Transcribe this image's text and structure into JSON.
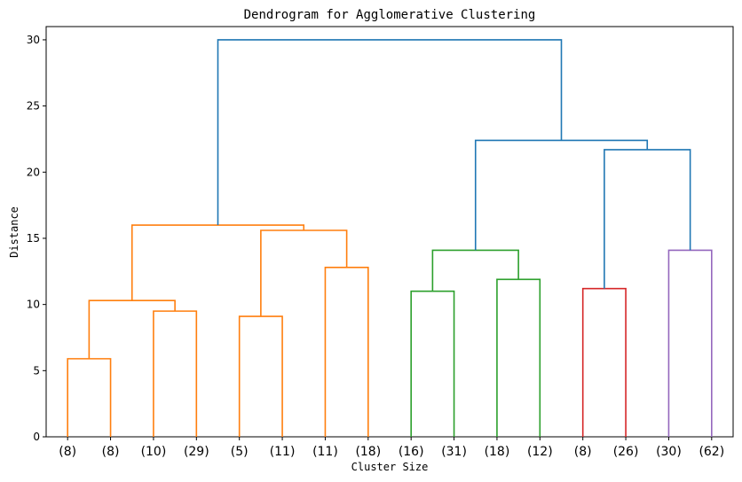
{
  "chart_data": {
    "type": "dendrogram",
    "title": "Dendrogram for Agglomerative Clustering",
    "xlabel": "Cluster Size",
    "ylabel": "Distance",
    "ylim": [
      0,
      31
    ],
    "yticks": [
      0,
      5,
      10,
      15,
      20,
      25,
      30
    ],
    "leaves": [
      "(8)",
      "(8)",
      "(10)",
      "(29)",
      "(5)",
      "(11)",
      "(11)",
      "(18)",
      "(16)",
      "(31)",
      "(18)",
      "(12)",
      "(8)",
      "(26)",
      "(30)",
      "(62)"
    ],
    "colors": {
      "orange": "#ff7f0e",
      "green": "#2ca02c",
      "red": "#d62728",
      "purple": "#9467bd",
      "blue": "#1f77b4"
    },
    "merges": [
      {
        "left": "leaf:0",
        "right": "leaf:1",
        "height": 5.9,
        "color": "orange"
      },
      {
        "left": "leaf:2",
        "right": "leaf:3",
        "height": 9.5,
        "color": "orange"
      },
      {
        "left": "merge:0",
        "right": "merge:1",
        "height": 10.3,
        "color": "orange"
      },
      {
        "left": "leaf:4",
        "right": "leaf:5",
        "height": 9.1,
        "color": "orange"
      },
      {
        "left": "leaf:6",
        "right": "leaf:7",
        "height": 12.8,
        "color": "orange"
      },
      {
        "left": "merge:3",
        "right": "merge:4",
        "height": 15.6,
        "color": "orange"
      },
      {
        "left": "merge:2",
        "right": "merge:5",
        "height": 16.0,
        "color": "orange"
      },
      {
        "left": "leaf:8",
        "right": "leaf:9",
        "height": 11.0,
        "color": "green"
      },
      {
        "left": "leaf:10",
        "right": "leaf:11",
        "height": 11.9,
        "color": "green"
      },
      {
        "left": "merge:7",
        "right": "merge:8",
        "height": 14.1,
        "color": "green"
      },
      {
        "left": "leaf:12",
        "right": "leaf:13",
        "height": 11.2,
        "color": "red"
      },
      {
        "left": "leaf:14",
        "right": "leaf:15",
        "height": 14.1,
        "color": "purple"
      },
      {
        "left": "merge:10",
        "right": "merge:11",
        "height": 21.7,
        "color": "blue"
      },
      {
        "left": "merge:9",
        "right": "merge:12",
        "height": 22.4,
        "color": "blue"
      },
      {
        "left": "merge:6",
        "right": "merge:13",
        "height": 30.0,
        "color": "blue"
      }
    ]
  }
}
